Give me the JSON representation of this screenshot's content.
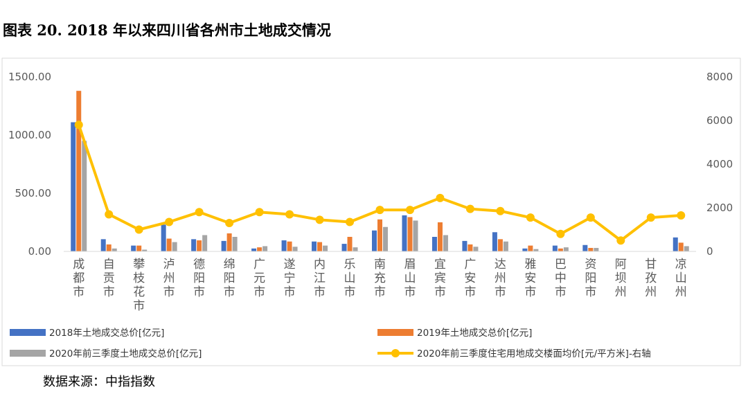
{
  "title": "图表 20. 2018 年以来四川省各州市土地成交情况",
  "source": "数据来源：中指指数",
  "colors": {
    "s2018": "#4472C4",
    "s2019": "#ED7D31",
    "s2020": "#A5A5A5",
    "line": "#FFC000",
    "axis": "#D9D9D9",
    "grid": "#D9D9D9"
  },
  "chart_data": {
    "type": "bar",
    "categories": [
      "成都市",
      "自贡市",
      "攀枝花市",
      "泸州市",
      "德阳市",
      "绵阳市",
      "广元市",
      "遂宁市",
      "内江市",
      "乐山市",
      "南充市",
      "眉山市",
      "宜宾市",
      "广安市",
      "达州市",
      "雅安市",
      "巴中市",
      "资阳市",
      "阿坝州",
      "甘孜州",
      "凉山州"
    ],
    "y_left": {
      "min": 0,
      "max": 1500,
      "ticks": [
        "0.00",
        "500.00",
        "1000.00",
        "1500.00"
      ],
      "tick_values": [
        0,
        500,
        1000,
        1500
      ]
    },
    "y_right": {
      "min": 0,
      "max": 8000,
      "ticks": [
        "0",
        "2000",
        "4000",
        "6000",
        "8000"
      ],
      "tick_values": [
        0,
        2000,
        4000,
        6000,
        8000
      ]
    },
    "grid": false,
    "legend_position": "bottom",
    "series": [
      {
        "name": "2018年土地成交总价[亿元]",
        "type": "bar",
        "axis": "left",
        "values": [
          1110,
          105,
          50,
          230,
          105,
          90,
          25,
          95,
          85,
          65,
          180,
          310,
          125,
          90,
          165,
          25,
          50,
          55,
          0,
          0,
          120
        ]
      },
      {
        "name": "2019年土地成交总价[亿元]",
        "type": "bar",
        "axis": "left",
        "values": [
          1380,
          60,
          50,
          110,
          95,
          155,
          35,
          85,
          80,
          125,
          275,
          295,
          250,
          60,
          105,
          50,
          25,
          30,
          0,
          0,
          75
        ]
      },
      {
        "name": "2020年前三季度土地成交总价[亿元]",
        "type": "bar",
        "axis": "left",
        "values": [
          950,
          25,
          15,
          80,
          140,
          125,
          45,
          40,
          50,
          35,
          210,
          265,
          140,
          40,
          85,
          20,
          35,
          30,
          0,
          0,
          45
        ]
      },
      {
        "name": "2020年前三季度住宅用地成交楼面均价[元/平方米]-右轴",
        "type": "line",
        "axis": "right",
        "values": [
          5800,
          1700,
          1000,
          1350,
          1800,
          1300,
          1800,
          1700,
          1450,
          1350,
          1900,
          1900,
          2450,
          1950,
          1850,
          1550,
          800,
          1550,
          500,
          1550,
          1650
        ]
      }
    ]
  }
}
